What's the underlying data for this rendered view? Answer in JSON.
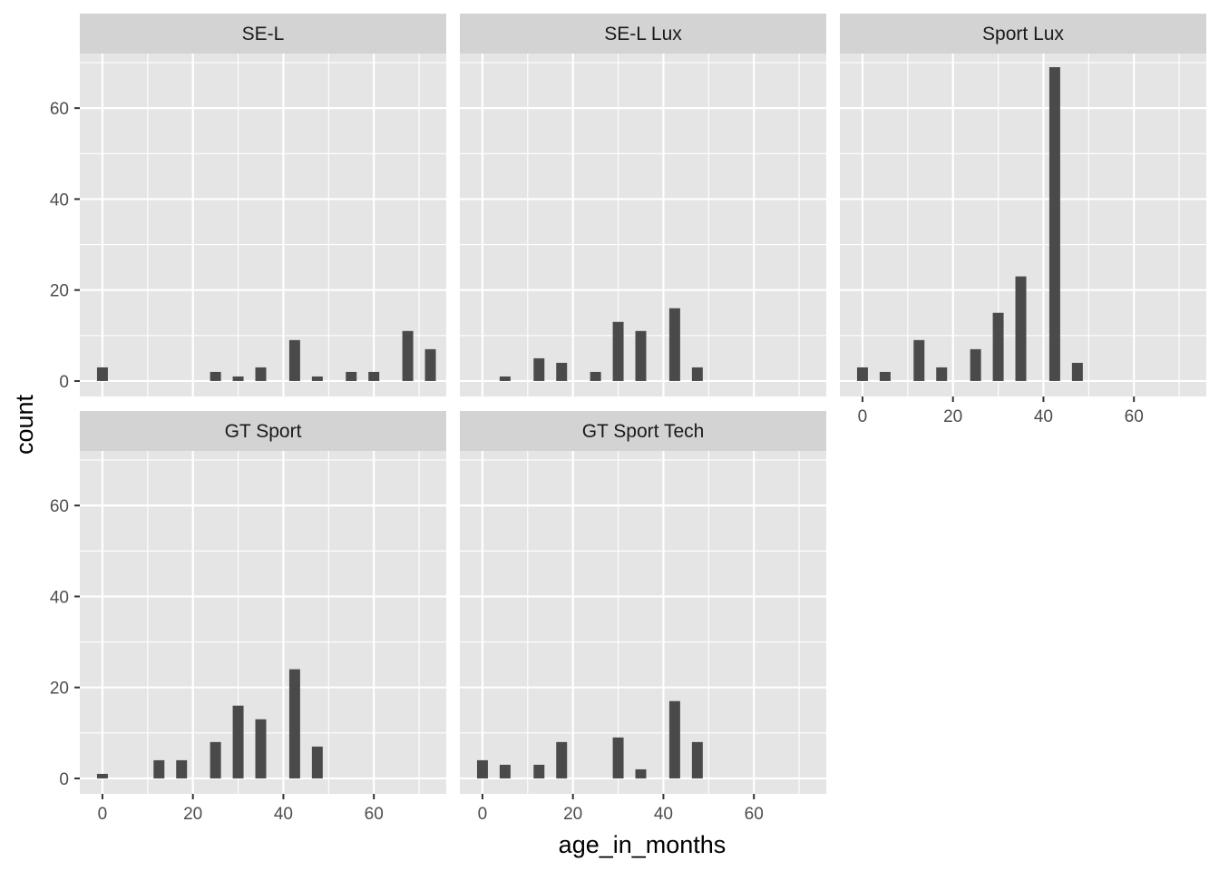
{
  "chart_data": {
    "type": "bar",
    "facet_layout": "wrap",
    "xlabel": "age_in_months",
    "ylabel": "count",
    "xlim": [
      -5,
      76
    ],
    "ylim": [
      -3.4,
      72
    ],
    "x_ticks": [
      0,
      20,
      40,
      60
    ],
    "y_ticks": [
      0,
      20,
      40,
      60
    ],
    "grid": true,
    "bar_width": 2.4,
    "colors": {
      "bar": "#4a4a4a",
      "panel_bg": "#e5e5e5",
      "strip_bg": "#d3d3d3",
      "grid": "#ffffff",
      "tick": "#333333"
    },
    "facets": [
      {
        "name": "SE-L",
        "x": [
          0,
          25,
          30,
          35,
          42.5,
          47.5,
          55,
          60,
          67.5,
          72.5
        ],
        "values": [
          3,
          2,
          1,
          3,
          9,
          1,
          2,
          2,
          11,
          7
        ]
      },
      {
        "name": "SE-L Lux",
        "x": [
          5,
          12.5,
          17.5,
          25,
          30,
          35,
          42.5,
          47.5
        ],
        "values": [
          1,
          5,
          4,
          2,
          13,
          11,
          16,
          3
        ]
      },
      {
        "name": "Sport Lux",
        "x": [
          0,
          5,
          12.5,
          17.5,
          25,
          30,
          35,
          42.5,
          47.5
        ],
        "values": [
          3,
          2,
          9,
          3,
          7,
          15,
          23,
          69,
          4
        ]
      },
      {
        "name": "GT Sport",
        "x": [
          0,
          12.5,
          17.5,
          25,
          30,
          35,
          42.5,
          47.5
        ],
        "values": [
          1,
          4,
          4,
          8,
          16,
          13,
          24,
          7
        ]
      },
      {
        "name": "GT Sport Tech",
        "x": [
          0,
          5,
          12.5,
          17.5,
          30,
          35,
          42.5,
          47.5
        ],
        "values": [
          4,
          3,
          3,
          8,
          9,
          2,
          17,
          8
        ]
      }
    ]
  }
}
